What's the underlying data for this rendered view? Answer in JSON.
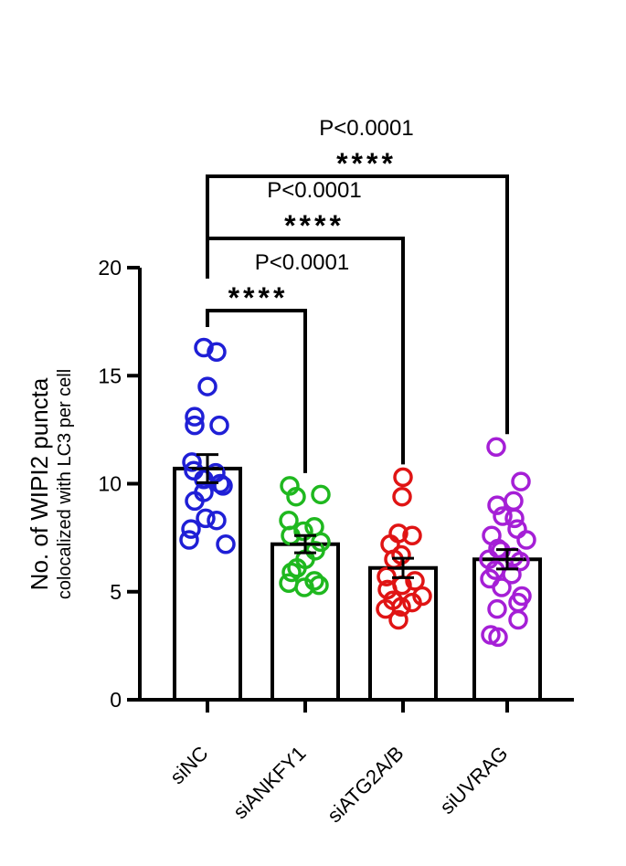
{
  "chart_data": {
    "type": "bar",
    "ylabel": "No. of WIPI2 puncta",
    "ylabel_sub": "colocalized with LC3 per cell",
    "ylim": [
      0,
      20
    ],
    "yticks": [
      0,
      5,
      10,
      15,
      20
    ],
    "categories": [
      "siNC",
      "siANKFY1",
      "siATG2A/B",
      "siUVRAG"
    ],
    "colors": [
      "#1f1fd6",
      "#1fb81f",
      "#e01414",
      "#a51fd6"
    ],
    "means": [
      10.7,
      7.2,
      6.1,
      6.5
    ],
    "sem": [
      0.65,
      0.4,
      0.45,
      0.45
    ],
    "points": [
      [
        16.3,
        16.1,
        14.5,
        13.1,
        12.7,
        12.7,
        11.0,
        10.6,
        10.5,
        10.2,
        10.0,
        9.9,
        9.6,
        9.2,
        8.4,
        8.3,
        7.9,
        7.4,
        7.2
      ],
      [
        9.9,
        9.5,
        9.4,
        8.3,
        8.0,
        7.8,
        7.6,
        7.3,
        6.9,
        6.5,
        6.1,
        5.9,
        5.5,
        5.4,
        5.3,
        5.2
      ],
      [
        10.3,
        9.4,
        7.7,
        7.6,
        7.2,
        6.7,
        6.5,
        5.7,
        5.5,
        5.3,
        5.1,
        4.8,
        4.6,
        4.5,
        4.3,
        4.2,
        3.7
      ],
      [
        11.7,
        10.1,
        9.2,
        9.0,
        8.5,
        8.4,
        7.9,
        7.6,
        7.4,
        7.0,
        6.9,
        6.6,
        6.5,
        6.4,
        6.0,
        5.8,
        5.6,
        5.2,
        4.8,
        4.5,
        4.2,
        3.7,
        3.0,
        2.9
      ]
    ],
    "comparisons": [
      {
        "from": "siNC",
        "to": "siANKFY1",
        "p_text": "P<0.0001",
        "stars": "****"
      },
      {
        "from": "siNC",
        "to": "siATG2A/B",
        "p_text": "P<0.0001",
        "stars": "****"
      },
      {
        "from": "siNC",
        "to": "siUVRAG",
        "p_text": "P<0.0001",
        "stars": "****"
      }
    ]
  }
}
